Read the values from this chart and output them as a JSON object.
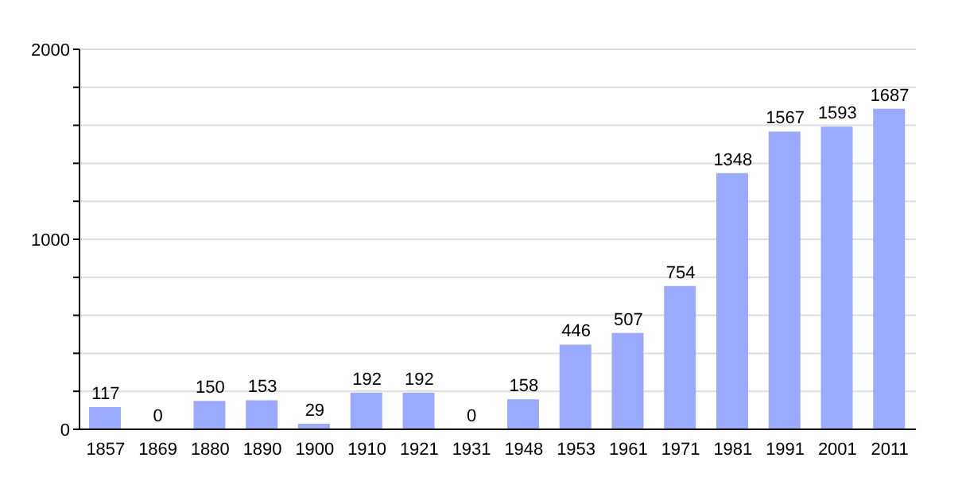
{
  "chart_data": {
    "type": "bar",
    "categories": [
      "1857",
      "1869",
      "1880",
      "1890",
      "1900",
      "1910",
      "1921",
      "1931",
      "1948",
      "1953",
      "1961",
      "1971",
      "1981",
      "1991",
      "2001",
      "2011"
    ],
    "values": [
      117,
      0,
      150,
      153,
      29,
      192,
      192,
      0,
      158,
      446,
      507,
      754,
      1348,
      1567,
      1593,
      1687
    ],
    "color": "#99aaff",
    "ylim": [
      0,
      2000
    ],
    "yticks": [
      0,
      {
        "value": 200,
        "label": null
      },
      {
        "value": 400,
        "label": null
      },
      {
        "value": 600,
        "label": null
      },
      {
        "value": 800,
        "label": null
      },
      1000,
      {
        "value": 1200,
        "label": null
      },
      {
        "value": 1400,
        "label": null
      },
      {
        "value": 1600,
        "label": null
      },
      {
        "value": 1800,
        "label": null
      },
      2000
    ],
    "grid": "y",
    "data_labels": true
  }
}
